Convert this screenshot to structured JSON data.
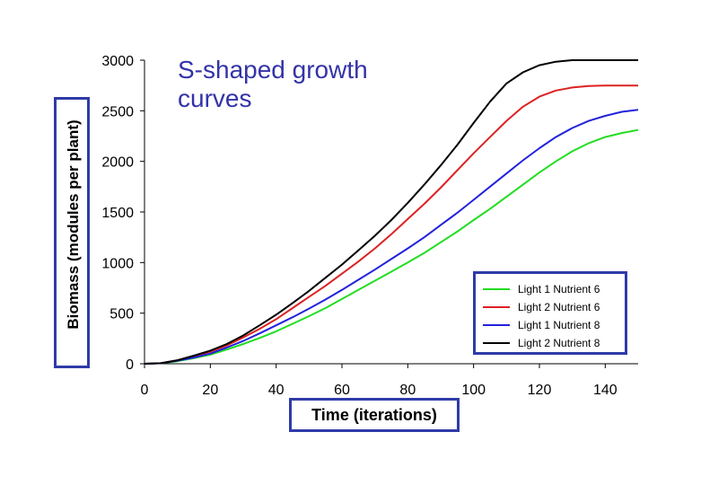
{
  "chart_data": {
    "type": "line",
    "title": "S-shaped growth curves",
    "title_lines": [
      "S-shaped growth",
      "curves"
    ],
    "xlabel": "Time (iterations)",
    "ylabel": "Biomass (modules per plant)",
    "xlim": [
      0,
      150
    ],
    "ylim": [
      0,
      3000
    ],
    "xticks": [
      "0",
      "20",
      "40",
      "60",
      "80",
      "100",
      "120",
      "140"
    ],
    "yticks": [
      "0",
      "500",
      "1000",
      "1500",
      "2000",
      "2500",
      "3000"
    ],
    "x": [
      0,
      5,
      10,
      15,
      20,
      25,
      30,
      35,
      40,
      45,
      50,
      55,
      60,
      65,
      70,
      75,
      80,
      85,
      90,
      95,
      100,
      105,
      110,
      115,
      120,
      125,
      130,
      135,
      140,
      145,
      150
    ],
    "grid": false,
    "legend_position": "bottom-right",
    "series": [
      {
        "name": "Light 1 Nutrient 6",
        "color": "#22dd22",
        "values": [
          0,
          5,
          25,
          55,
          90,
          140,
          195,
          255,
          320,
          395,
          470,
          550,
          640,
          730,
          820,
          910,
          1000,
          1095,
          1200,
          1305,
          1420,
          1530,
          1650,
          1770,
          1890,
          2000,
          2100,
          2180,
          2240,
          2280,
          2310
        ]
      },
      {
        "name": "Light 2 Nutrient 6",
        "color": "#dd2222",
        "values": [
          0,
          5,
          35,
          70,
          120,
          180,
          260,
          345,
          440,
          550,
          660,
          770,
          890,
          1010,
          1140,
          1280,
          1430,
          1580,
          1740,
          1910,
          2080,
          2240,
          2400,
          2540,
          2640,
          2700,
          2730,
          2745,
          2750,
          2750,
          2750
        ]
      },
      {
        "name": "Light 1 Nutrient 8",
        "color": "#2222dd",
        "values": [
          0,
          5,
          30,
          60,
          100,
          160,
          225,
          300,
          380,
          460,
          545,
          635,
          730,
          830,
          930,
          1035,
          1140,
          1250,
          1370,
          1490,
          1620,
          1750,
          1880,
          2010,
          2130,
          2240,
          2330,
          2400,
          2450,
          2490,
          2510
        ]
      },
      {
        "name": "Light 2 Nutrient 8",
        "color": "#000000",
        "values": [
          0,
          5,
          35,
          80,
          130,
          195,
          280,
          380,
          485,
          600,
          720,
          850,
          980,
          1120,
          1265,
          1420,
          1590,
          1770,
          1960,
          2160,
          2380,
          2590,
          2770,
          2880,
          2950,
          2985,
          3000,
          3000,
          3000,
          3000,
          3000
        ]
      }
    ]
  }
}
